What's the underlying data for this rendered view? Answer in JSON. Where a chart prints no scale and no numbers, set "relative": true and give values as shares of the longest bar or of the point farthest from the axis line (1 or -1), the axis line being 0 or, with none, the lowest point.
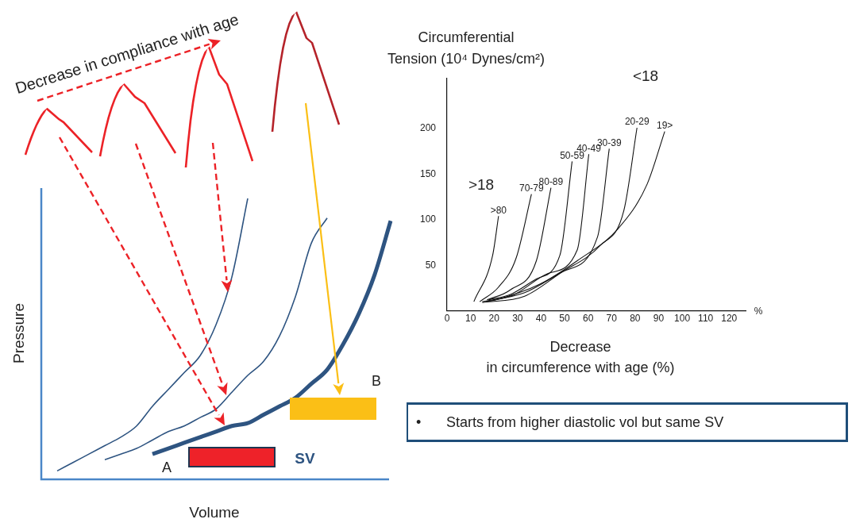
{
  "chart_data": [
    {
      "type": "line",
      "relative": true,
      "xlabel": "Volume",
      "ylabel": "Pressure",
      "categories": [
        null,
        null,
        null,
        null,
        null,
        null,
        null,
        null,
        null,
        null,
        null,
        null,
        null,
        null,
        null,
        null,
        null,
        null,
        null,
        null,
        null,
        null,
        null
      ],
      "marker": "none",
      "grid": false,
      "legend": false,
      "tick_labels": false,
      "series": [
        {
          "color": "#2e5481",
          "values": [
            null,
            0.03,
            0.06,
            0.09,
            0.12,
            0.15,
            0.19,
            0.26,
            0.32,
            0.38,
            0.44,
            0.55,
            0.72,
            1,
            null,
            null,
            null,
            null,
            null,
            null,
            null,
            null,
            null
          ]
        },
        {
          "color": "#2e5481",
          "values": [
            null,
            null,
            null,
            null,
            0.07,
            0.09,
            0.11,
            0.14,
            0.17,
            0.19,
            0.22,
            0.25,
            0.31,
            0.37,
            0.42,
            0.51,
            0.65,
            0.84,
            0.93,
            null,
            null,
            null,
            null
          ]
        },
        {
          "color": "#2e5481",
          "values": [
            null,
            null,
            null,
            null,
            null,
            null,
            null,
            0.09,
            0.11,
            0.13,
            0.15,
            0.17,
            0.19,
            0.2,
            0.23,
            0.26,
            0.29,
            0.34,
            0.39,
            0.48,
            0.59,
            0.73,
            0.92
          ]
        }
      ],
      "annotations": [
        "Decrease in compliance with age",
        "A",
        "B",
        "SV",
        "• Starts from higher diastolic vol but same SV"
      ]
    },
    {
      "type": "line",
      "ylabel": "Circumferential Tension (10⁴ Dynes/cm²)",
      "xlabel": "Decrease in circumference with age (%)",
      "xlim": [
        0,
        127
      ],
      "xticks": [
        0,
        10,
        20,
        30,
        40,
        50,
        60,
        70,
        80,
        90,
        100,
        110,
        120
      ],
      "ylim": [
        0,
        255
      ],
      "yticks": [
        50,
        100,
        150,
        200
      ],
      "marker": "none",
      "grid": false,
      "legend": false,
      "series": [
        {
          "name": ">80",
          "color": "#111111",
          "x": [
            11.4,
            19.4,
            21.9
          ],
          "values": [
            10,
            61,
            104
          ]
        },
        {
          "name": "70-79",
          "color": "#111111",
          "x": [
            13.9,
            21.9,
            29.4,
            35.9
          ],
          "values": [
            10,
            26,
            58,
            128
          ]
        },
        {
          "name": "80-89",
          "color": "#111111",
          "x": [
            17,
            26.9,
            38,
            44.2
          ],
          "values": [
            12,
            23,
            55,
            135
          ]
        },
        {
          "name": "50-59",
          "color": "#111111",
          "x": [
            17.7,
            27,
            38,
            48,
            53.2
          ],
          "values": [
            12,
            18,
            35,
            61,
            164
          ]
        },
        {
          "name": "40-49",
          "color": "#111111",
          "x": [
            16.6,
            28,
            43,
            55.4,
            60.3
          ],
          "values": [
            10,
            17,
            41,
            67,
            172
          ]
        },
        {
          "name": "30-39",
          "color": "#111111",
          "x": [
            15,
            33,
            49.2,
            64,
            69
          ],
          "values": [
            10,
            20,
            43,
            81,
            178
          ]
        },
        {
          "name": "20-29",
          "color": "#111111",
          "x": [
            15,
            33,
            48,
            65.3,
            75.2,
            80.8
          ],
          "values": [
            9,
            16,
            41,
            72,
            110,
            201
          ]
        },
        {
          "name": "19>",
          "color": "#111111",
          "x": [
            16.6,
            20.7,
            39.3,
            55.4,
            72.7,
            85.1,
            92.6
          ],
          "values": [
            10,
            12,
            29,
            55,
            90,
            139,
            197
          ]
        }
      ],
      "annotations": [
        ">18",
        "<18",
        "%"
      ]
    }
  ]
}
